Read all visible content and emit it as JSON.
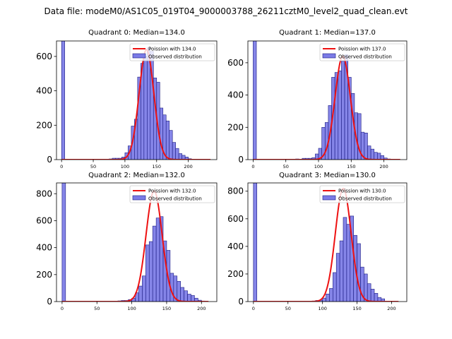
{
  "suptitle": "Data file: modeM0/AS1C05_019T04_9000003788_26211cztM0_level2_quad_clean.evt",
  "colors": {
    "hist_face": "#7b7be6",
    "hist_edge": "#1a1a80",
    "poisson": "#ee1111"
  },
  "chart_data": [
    {
      "type": "bar",
      "title": "Quadrant 0: Median=134.0",
      "median": 134.0,
      "xlim": [
        -8,
        245
      ],
      "ylim": [
        0,
        690
      ],
      "xticks": [
        0,
        50,
        100,
        150,
        200
      ],
      "yticks": [
        0,
        200,
        400,
        600
      ],
      "bin_width": 5,
      "bins": [
        [
          0,
          690
        ],
        [
          75,
          4
        ],
        [
          80,
          8
        ],
        [
          85,
          8
        ],
        [
          90,
          8
        ],
        [
          95,
          15
        ],
        [
          100,
          40
        ],
        [
          105,
          80
        ],
        [
          110,
          195
        ],
        [
          115,
          235
        ],
        [
          120,
          480
        ],
        [
          125,
          560
        ],
        [
          130,
          600
        ],
        [
          135,
          650
        ],
        [
          140,
          630
        ],
        [
          145,
          475
        ],
        [
          150,
          450
        ],
        [
          155,
          300
        ],
        [
          160,
          260
        ],
        [
          165,
          225
        ],
        [
          170,
          170
        ],
        [
          175,
          100
        ],
        [
          180,
          65
        ],
        [
          185,
          35
        ],
        [
          190,
          25
        ],
        [
          195,
          15
        ],
        [
          200,
          5
        ]
      ],
      "legend": [
        "Poission with 134.0",
        "Observed distribution"
      ],
      "poisson_mean": 134.0,
      "poisson_peak": 640,
      "poisson_range": [
        0,
        235
      ]
    },
    {
      "type": "bar",
      "title": "Quadrant 1: Median=137.0",
      "median": 137.0,
      "xlim": [
        -8,
        235
      ],
      "ylim": [
        0,
        735
      ],
      "xticks": [
        0,
        50,
        100,
        150,
        200
      ],
      "yticks": [
        0,
        200,
        400,
        600
      ],
      "bin_width": 5,
      "bins": [
        [
          0,
          735
        ],
        [
          65,
          4
        ],
        [
          75,
          8
        ],
        [
          80,
          8
        ],
        [
          85,
          8
        ],
        [
          90,
          12
        ],
        [
          95,
          35
        ],
        [
          100,
          70
        ],
        [
          105,
          200
        ],
        [
          110,
          230
        ],
        [
          115,
          335
        ],
        [
          120,
          510
        ],
        [
          125,
          540
        ],
        [
          130,
          550
        ],
        [
          135,
          610
        ],
        [
          140,
          650
        ],
        [
          145,
          510
        ],
        [
          150,
          410
        ],
        [
          155,
          290
        ],
        [
          160,
          285
        ],
        [
          165,
          170
        ],
        [
          170,
          165
        ],
        [
          175,
          85
        ],
        [
          180,
          65
        ],
        [
          185,
          45
        ],
        [
          190,
          40
        ],
        [
          195,
          25
        ],
        [
          200,
          10
        ],
        [
          205,
          4
        ]
      ],
      "legend": [
        "Poission with 137.0",
        "Observed distribution"
      ],
      "poisson_mean": 137.0,
      "poisson_peak": 640,
      "poisson_range": [
        0,
        225
      ]
    },
    {
      "type": "bar",
      "title": "Quadrant 2: Median=132.0",
      "median": 132.0,
      "xlim": [
        -8,
        222
      ],
      "ylim": [
        0,
        880
      ],
      "xticks": [
        0,
        50,
        100,
        150,
        200
      ],
      "yticks": [
        0,
        200,
        400,
        600,
        800
      ],
      "bin_width": 5,
      "bins": [
        [
          0,
          880
        ],
        [
          80,
          5
        ],
        [
          85,
          8
        ],
        [
          90,
          8
        ],
        [
          95,
          15
        ],
        [
          100,
          25
        ],
        [
          105,
          65
        ],
        [
          110,
          115
        ],
        [
          115,
          190
        ],
        [
          120,
          420
        ],
        [
          125,
          445
        ],
        [
          130,
          560
        ],
        [
          135,
          620
        ],
        [
          140,
          630
        ],
        [
          145,
          450
        ],
        [
          150,
          380
        ],
        [
          155,
          210
        ],
        [
          160,
          190
        ],
        [
          165,
          150
        ],
        [
          170,
          105
        ],
        [
          175,
          80
        ],
        [
          180,
          55
        ],
        [
          185,
          45
        ],
        [
          190,
          25
        ],
        [
          195,
          10
        ],
        [
          200,
          4
        ]
      ],
      "legend": [
        "Poission with 132.0",
        "Observed distribution"
      ],
      "poisson_mean": 132.0,
      "poisson_peak": 820,
      "poisson_range": [
        0,
        210
      ]
    },
    {
      "type": "bar",
      "title": "Quadrant 3: Median=130.0",
      "median": 130.0,
      "xlim": [
        -8,
        222
      ],
      "ylim": [
        0,
        860
      ],
      "xticks": [
        0,
        50,
        100,
        150,
        200
      ],
      "yticks": [
        0,
        200,
        400,
        600,
        800
      ],
      "bin_width": 5,
      "bins": [
        [
          0,
          860
        ],
        [
          85,
          4
        ],
        [
          90,
          8
        ],
        [
          95,
          10
        ],
        [
          100,
          25
        ],
        [
          105,
          55
        ],
        [
          110,
          95
        ],
        [
          115,
          210
        ],
        [
          120,
          350
        ],
        [
          125,
          440
        ],
        [
          130,
          610
        ],
        [
          135,
          560
        ],
        [
          140,
          620
        ],
        [
          145,
          480
        ],
        [
          150,
          420
        ],
        [
          155,
          250
        ],
        [
          160,
          200
        ],
        [
          165,
          130
        ],
        [
          170,
          90
        ],
        [
          175,
          60
        ],
        [
          180,
          30
        ],
        [
          185,
          20
        ]
      ],
      "legend": [
        "Poission with 130.0",
        "Observed distribution"
      ],
      "poisson_mean": 130.0,
      "poisson_peak": 820,
      "poisson_range": [
        0,
        210
      ]
    }
  ]
}
